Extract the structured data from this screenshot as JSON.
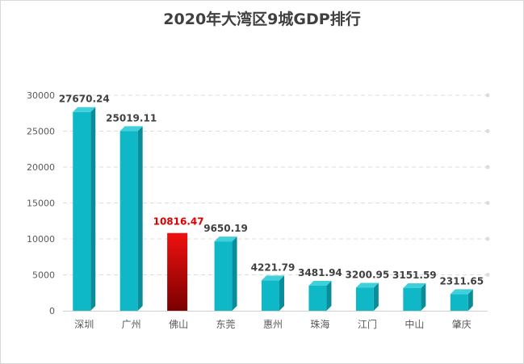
{
  "chart_data": {
    "type": "bar",
    "title": "2020年大湾区9城GDP排行",
    "categories": [
      "深圳",
      "广州",
      "佛山",
      "东莞",
      "惠州",
      "珠海",
      "江门",
      "中山",
      "肇庆"
    ],
    "values": [
      27670.24,
      25019.11,
      10816.47,
      9650.19,
      4221.79,
      3481.94,
      3200.95,
      3151.59,
      2311.65
    ],
    "data_labels": [
      "27670.24",
      "25019.11",
      "10816.47",
      "9650.19",
      "4221.79",
      "3481.94",
      "3200.95",
      "3151.59",
      "2311.65"
    ],
    "yticks": [
      "0",
      "5000",
      "10000",
      "15000",
      "20000",
      "25000",
      "30000"
    ],
    "ytick_values": [
      0,
      5000,
      10000,
      15000,
      20000,
      25000,
      30000
    ],
    "ylim": [
      0,
      30000
    ],
    "xlabel": "",
    "ylabel": "",
    "grid": true,
    "highlight_index": 2,
    "colors": {
      "bar_front": "#0fb8c6",
      "bar_top": "#3fd0dc",
      "bar_side": "#0a8d99",
      "highlight_top": "#f01010",
      "highlight_bottom": "#7a0000",
      "highlight_label": "#e00000",
      "label": "#404040",
      "grid": "#dcdcdc",
      "axis_text": "#595959"
    }
  }
}
